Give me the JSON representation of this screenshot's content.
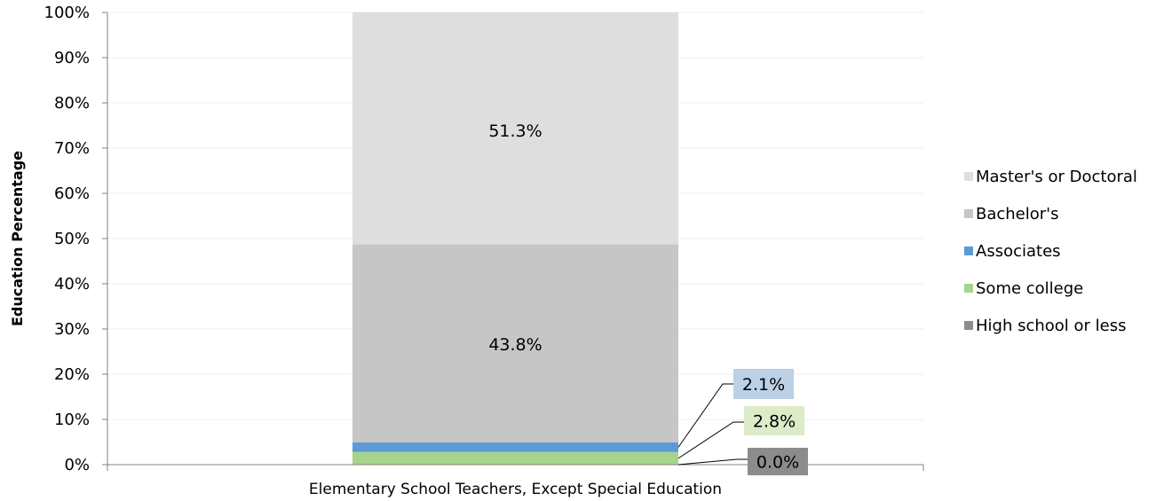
{
  "chart_data": {
    "type": "bar",
    "stacked": true,
    "categories": [
      "Elementary School Teachers, Except Special Education"
    ],
    "series": [
      {
        "name": "High school or less",
        "values": [
          0.0
        ],
        "color": "#8c8c8c",
        "label": "0.0%",
        "label_bg": "#8c8c8c"
      },
      {
        "name": "Some college",
        "values": [
          2.8
        ],
        "color": "#a6d48a",
        "label": "2.8%",
        "label_bg": "#dcebc8"
      },
      {
        "name": "Associates",
        "values": [
          2.1
        ],
        "color": "#5b9bd5",
        "label": "2.1%",
        "label_bg": "#bcd0e6"
      },
      {
        "name": "Bachelor's",
        "values": [
          43.8
        ],
        "color": "#c6c6c6",
        "label": "43.8%"
      },
      {
        "name": "Master's or Doctoral",
        "values": [
          51.3
        ],
        "color": "#dedede",
        "label": "51.3%"
      }
    ],
    "legend_order": [
      "Master's or Doctoral",
      "Bachelor's",
      "Associates",
      "Some college",
      "High school or less"
    ],
    "legend_position": "right",
    "ylabel": "Education Percentage",
    "xlabel": "",
    "ylim": [
      0,
      100
    ],
    "y_ticks": [
      "0%",
      "10%",
      "20%",
      "30%",
      "40%",
      "50%",
      "60%",
      "70%",
      "80%",
      "90%",
      "100%"
    ],
    "grid": true
  }
}
